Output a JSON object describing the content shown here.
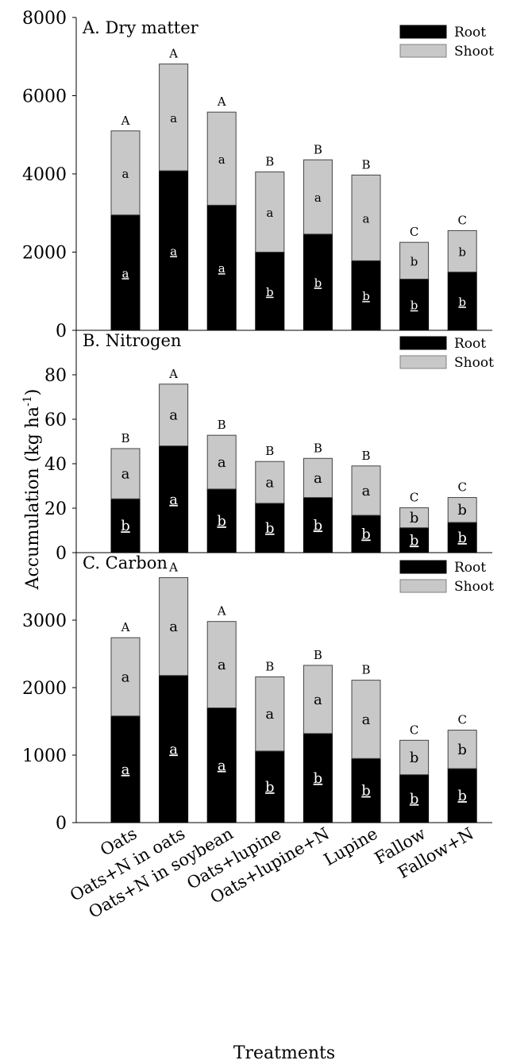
{
  "y_axis_label": "Accumulation (kg ha",
  "y_axis_label_exp": "-1",
  "y_axis_label_tail": ")",
  "x_axis_label": "Treatments",
  "legend": {
    "root": "Root",
    "shoot": "Shoot"
  },
  "colors": {
    "root": "#000000",
    "shoot": "#c8c8c8",
    "axis": "#000000"
  },
  "chart_data": [
    {
      "type": "bar",
      "stacked": true,
      "title": "A. Dry matter",
      "categories": [
        "Oats",
        "Oats+N in oats",
        "Oats+N in soybean",
        "Oats+lupine",
        "Oats+lupine+N",
        "Lupine",
        "Fallow",
        "Fallow+N"
      ],
      "series": [
        {
          "name": "Root",
          "values": [
            2950,
            4080,
            3200,
            2000,
            2460,
            1780,
            1310,
            1490
          ]
        },
        {
          "name": "Shoot",
          "values": [
            2150,
            2730,
            2380,
            2050,
            1900,
            2190,
            940,
            1060
          ]
        }
      ],
      "totals": [
        5100,
        6810,
        5580,
        4050,
        4360,
        3970,
        2250,
        2550
      ],
      "total_letters": [
        "A",
        "A",
        "A",
        "B",
        "B",
        "B",
        "C",
        "C"
      ],
      "root_letters": [
        "a",
        "a",
        "a",
        "b",
        "b",
        "b",
        "b",
        "b"
      ],
      "shoot_letters": [
        "a",
        "a",
        "a",
        "a",
        "a",
        "a",
        "b",
        "b"
      ],
      "ylim": [
        0,
        8000
      ],
      "yticks": [
        0,
        2000,
        4000,
        6000,
        8000
      ],
      "legend_position": "top-right"
    },
    {
      "type": "bar",
      "stacked": true,
      "title": "B. Nitrogen",
      "categories": [
        "Oats",
        "Oats+N in oats",
        "Oats+N in soybean",
        "Oats+lupine",
        "Oats+lupine+N",
        "Lupine",
        "Fallow",
        "Fallow+N"
      ],
      "series": [
        {
          "name": "Root",
          "values": [
            24.2,
            48.0,
            28.6,
            22.2,
            24.8,
            16.8,
            11.2,
            13.6
          ]
        },
        {
          "name": "Shoot",
          "values": [
            22.6,
            27.8,
            24.2,
            18.8,
            17.6,
            22.2,
            9.0,
            11.2
          ]
        }
      ],
      "totals": [
        46.8,
        75.8,
        52.8,
        41.0,
        42.4,
        39.0,
        20.2,
        24.8
      ],
      "total_letters": [
        "B",
        "A",
        "B",
        "B",
        "B",
        "B",
        "C",
        "C"
      ],
      "root_letters": [
        "b",
        "a",
        "b",
        "b",
        "b",
        "b",
        "b",
        "b"
      ],
      "shoot_letters": [
        "a",
        "a",
        "a",
        "a",
        "a",
        "a",
        "b",
        "b"
      ],
      "ylim": [
        0,
        100
      ],
      "yticks": [
        0,
        20,
        40,
        60,
        80
      ],
      "legend_position": "top-right"
    },
    {
      "type": "bar",
      "stacked": true,
      "title": "C. Carbon",
      "categories": [
        "Oats",
        "Oats+N in oats",
        "Oats+N in soybean",
        "Oats+lupine",
        "Oats+lupine+N",
        "Lupine",
        "Fallow",
        "Fallow+N"
      ],
      "series": [
        {
          "name": "Root",
          "values": [
            1580,
            2180,
            1700,
            1060,
            1320,
            950,
            710,
            800
          ]
        },
        {
          "name": "Shoot",
          "values": [
            1160,
            1450,
            1280,
            1100,
            1010,
            1160,
            510,
            570
          ]
        }
      ],
      "totals": [
        2740,
        3630,
        2980,
        2160,
        2330,
        2110,
        1220,
        1370
      ],
      "total_letters": [
        "A",
        "A",
        "A",
        "B",
        "B",
        "B",
        "C",
        "C"
      ],
      "root_letters": [
        "a",
        "a",
        "a",
        "b",
        "b",
        "b",
        "b",
        "b"
      ],
      "shoot_letters": [
        "a",
        "a",
        "a",
        "a",
        "a",
        "a",
        "b",
        "b"
      ],
      "ylim": [
        0,
        4000
      ],
      "yticks": [
        0,
        1000,
        2000,
        3000
      ],
      "legend_position": "top-right"
    }
  ]
}
